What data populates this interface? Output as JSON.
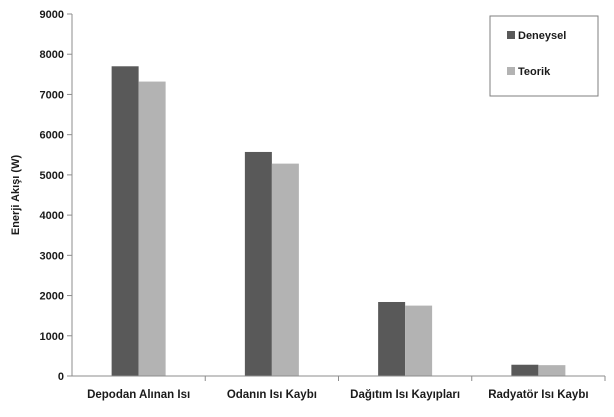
{
  "chart_data": {
    "type": "bar",
    "title": "",
    "xlabel": "",
    "ylabel": "Enerji Akışı (W)",
    "ylim": [
      0,
      9000
    ],
    "yticks": [
      0,
      1000,
      2000,
      3000,
      4000,
      5000,
      6000,
      7000,
      8000,
      9000
    ],
    "grid": false,
    "legend_position": "top-right",
    "categories": [
      "Depodan Alınan Isı",
      "Odanın Isı Kaybı",
      "Dağıtım Isı Kayıpları",
      "Radyatör Isı Kaybı"
    ],
    "series": [
      {
        "name": "Deneysel",
        "color": "#595959",
        "values": [
          7700,
          5570,
          1840,
          280
        ]
      },
      {
        "name": "Teorik",
        "color": "#b3b3b3",
        "values": [
          7320,
          5280,
          1750,
          270
        ]
      }
    ]
  }
}
